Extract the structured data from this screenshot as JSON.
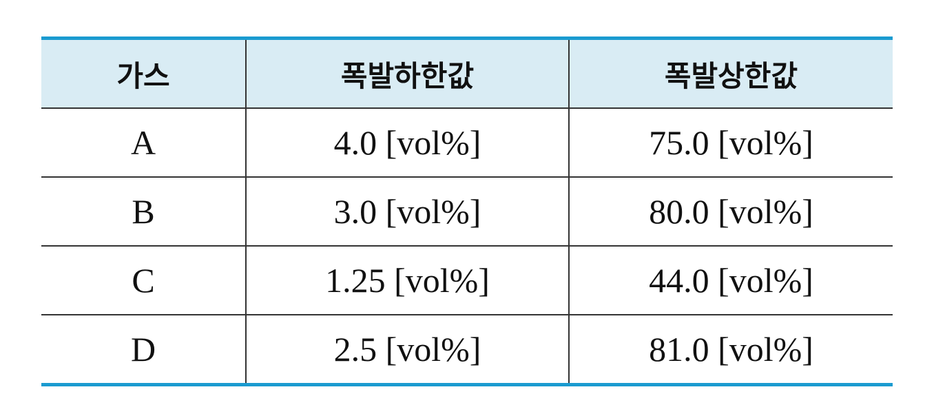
{
  "table": {
    "header": [
      "가스",
      "폭발하한값",
      "폭발상한값"
    ],
    "rows": [
      [
        "A",
        "4.0 [vol%]",
        "75.0 [vol%]"
      ],
      [
        "B",
        "3.0 [vol%]",
        "80.0 [vol%]"
      ],
      [
        "C",
        "1.25 [vol%]",
        "44.0 [vol%]"
      ],
      [
        "D",
        "2.5 [vol%]",
        "81.0 [vol%]"
      ]
    ]
  }
}
